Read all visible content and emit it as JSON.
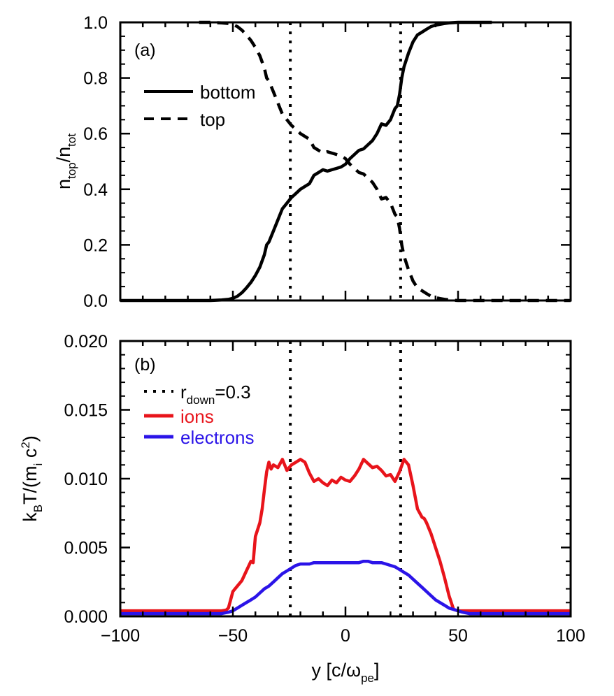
{
  "chart_data": [
    {
      "id": "panel-a",
      "type": "line",
      "panel_label": "(a)",
      "ylabel_main": "n",
      "ylabel_sub1": "top",
      "ylabel_mid": "/n",
      "ylabel_sub2": "tot",
      "xlim": [
        -100,
        100
      ],
      "ylim": [
        0.0,
        1.0
      ],
      "yticks": [
        0.0,
        0.2,
        0.4,
        0.6,
        0.8,
        1.0
      ],
      "ytick_labels": [
        "0.0",
        "0.2",
        "0.4",
        "0.6",
        "0.8",
        "1.0"
      ],
      "xticks": [
        -100,
        -50,
        0,
        50,
        100
      ],
      "x_tick_labels_shown": false,
      "legend_position": "upper-left",
      "vlines": [
        -24.5,
        24.5
      ],
      "series": [
        {
          "name": "bottom",
          "style": "solid",
          "color": "#000000",
          "x": [
            -100,
            -60,
            -55,
            -52,
            -50,
            -48,
            -46,
            -44,
            -42,
            -40,
            -38,
            -36,
            -35,
            -34,
            -32,
            -30,
            -29,
            -28,
            -27,
            -26,
            -25,
            -24,
            -22,
            -20,
            -18,
            -16,
            -14,
            -12,
            -10,
            -8,
            -6,
            -4,
            -2,
            0,
            2,
            4,
            6,
            8,
            10,
            12,
            14,
            16,
            18,
            20,
            22,
            23,
            24,
            25,
            26,
            28,
            30,
            32,
            34,
            36,
            38,
            40,
            42,
            44,
            46,
            48,
            50,
            52,
            55,
            60,
            65
          ],
          "y": [
            0.0,
            0.0,
            0.002,
            0.004,
            0.008,
            0.015,
            0.028,
            0.045,
            0.065,
            0.09,
            0.12,
            0.165,
            0.2,
            0.21,
            0.25,
            0.29,
            0.31,
            0.33,
            0.34,
            0.35,
            0.36,
            0.37,
            0.385,
            0.4,
            0.41,
            0.42,
            0.45,
            0.46,
            0.47,
            0.465,
            0.47,
            0.475,
            0.48,
            0.49,
            0.51,
            0.525,
            0.54,
            0.545,
            0.56,
            0.575,
            0.6,
            0.635,
            0.63,
            0.65,
            0.69,
            0.7,
            0.74,
            0.8,
            0.84,
            0.89,
            0.93,
            0.955,
            0.965,
            0.975,
            0.985,
            0.99,
            0.993,
            0.996,
            0.998,
            0.999,
            1.0,
            1.0,
            1.0,
            1.0,
            1.0
          ]
        },
        {
          "name": "top",
          "style": "dashed",
          "color": "#000000",
          "x": [
            -65,
            -60,
            -55,
            -52,
            -50,
            -48,
            -46,
            -44,
            -42,
            -40,
            -38,
            -36,
            -35,
            -34,
            -32,
            -30,
            -29,
            -28,
            -27,
            -26,
            -25,
            -24,
            -22,
            -20,
            -18,
            -16,
            -14,
            -12,
            -10,
            -8,
            -6,
            -4,
            -2,
            0,
            2,
            4,
            6,
            8,
            10,
            12,
            14,
            16,
            18,
            20,
            22,
            23,
            24,
            25,
            26,
            28,
            30,
            32,
            34,
            36,
            38,
            40,
            42,
            44,
            46,
            48,
            50,
            52,
            55,
            60,
            100
          ],
          "y": [
            1.0,
            1.0,
            0.998,
            0.996,
            0.992,
            0.985,
            0.972,
            0.955,
            0.935,
            0.91,
            0.88,
            0.835,
            0.8,
            0.79,
            0.75,
            0.71,
            0.69,
            0.67,
            0.66,
            0.65,
            0.64,
            0.63,
            0.615,
            0.6,
            0.59,
            0.58,
            0.55,
            0.54,
            0.53,
            0.535,
            0.53,
            0.525,
            0.52,
            0.51,
            0.49,
            0.475,
            0.46,
            0.455,
            0.44,
            0.425,
            0.4,
            0.365,
            0.37,
            0.35,
            0.31,
            0.3,
            0.26,
            0.2,
            0.16,
            0.11,
            0.07,
            0.045,
            0.035,
            0.025,
            0.015,
            0.01,
            0.007,
            0.004,
            0.002,
            0.001,
            0.0,
            0.0,
            0.0,
            0.0,
            0.0
          ]
        }
      ]
    },
    {
      "id": "panel-b",
      "type": "line",
      "panel_label": "(b)",
      "ylabel_parts": [
        "k",
        "B",
        "T/(m",
        "i",
        " c",
        "2",
        ")"
      ],
      "xlabel_parts": [
        "y [c/ω",
        "pe",
        "]"
      ],
      "xlim": [
        -100,
        100
      ],
      "ylim": [
        0.0,
        0.02
      ],
      "yticks": [
        0.0,
        0.005,
        0.01,
        0.015,
        0.02
      ],
      "ytick_labels": [
        "0.000",
        "0.005",
        "0.010",
        "0.015",
        "0.020"
      ],
      "xticks": [
        -100,
        -50,
        0,
        50,
        100
      ],
      "xtick_labels": [
        "−100",
        "−50",
        "0",
        "50",
        "100"
      ],
      "legend_position": "upper-left",
      "vlines": [
        -24.5,
        24.5
      ],
      "legend": [
        {
          "style": "dotted",
          "color": "#000000",
          "label_main": "r",
          "label_sub": "down",
          "label_rest": "=0.3"
        },
        {
          "style": "solid",
          "color": "#e8141b",
          "label": "ions"
        },
        {
          "style": "solid",
          "color": "#2b14e8",
          "label": "electrons"
        }
      ],
      "series": [
        {
          "name": "ions",
          "color": "#e8141b",
          "x": [
            -100,
            -60,
            -55,
            -53,
            -52,
            -51,
            -50,
            -49,
            -48,
            -46,
            -44,
            -42,
            -41,
            -40,
            -38,
            -37,
            -36,
            -35,
            -34,
            -33,
            -32,
            -30,
            -28,
            -26,
            -24,
            -22,
            -20,
            -18,
            -16,
            -14,
            -12,
            -10,
            -8,
            -6,
            -4,
            -2,
            0,
            2,
            4,
            6,
            8,
            10,
            12,
            14,
            16,
            18,
            20,
            22,
            24,
            26,
            28,
            30,
            32,
            34,
            35,
            36,
            38,
            40,
            42,
            44,
            46,
            48,
            50,
            52,
            55,
            60,
            100
          ],
          "y": [
            0.0004,
            0.0004,
            0.0004,
            0.00045,
            0.0006,
            0.0012,
            0.0018,
            0.002,
            0.0022,
            0.0026,
            0.0033,
            0.004,
            0.0039,
            0.0058,
            0.0068,
            0.0078,
            0.0092,
            0.0105,
            0.0112,
            0.0107,
            0.011,
            0.0108,
            0.0114,
            0.0106,
            0.011,
            0.0112,
            0.0114,
            0.0112,
            0.0104,
            0.0098,
            0.01,
            0.0097,
            0.0095,
            0.0099,
            0.0097,
            0.0101,
            0.0099,
            0.0098,
            0.0102,
            0.0107,
            0.0114,
            0.0111,
            0.0108,
            0.0109,
            0.0106,
            0.0102,
            0.0103,
            0.0098,
            0.0105,
            0.0114,
            0.011,
            0.0095,
            0.0078,
            0.0072,
            0.0071,
            0.0068,
            0.006,
            0.005,
            0.004,
            0.0028,
            0.0015,
            0.0005,
            0.0004,
            0.0004,
            0.0004,
            0.0004,
            0.0004
          ]
        },
        {
          "name": "electrons",
          "color": "#2b14e8",
          "x": [
            -100,
            -60,
            -55,
            -52,
            -50,
            -48,
            -46,
            -44,
            -42,
            -40,
            -38,
            -36,
            -34,
            -32,
            -30,
            -28,
            -26,
            -24,
            -22,
            -20,
            -18,
            -16,
            -14,
            -12,
            -10,
            -8,
            -6,
            -4,
            -2,
            0,
            2,
            4,
            6,
            8,
            10,
            12,
            14,
            16,
            18,
            20,
            22,
            24,
            26,
            28,
            30,
            32,
            34,
            36,
            38,
            40,
            42,
            44,
            46,
            48,
            50,
            52,
            55,
            60,
            100
          ],
          "y": [
            0.0002,
            0.0002,
            0.0002,
            0.0003,
            0.0004,
            0.0006,
            0.0008,
            0.001,
            0.0012,
            0.0014,
            0.0017,
            0.002,
            0.0022,
            0.0025,
            0.0028,
            0.0031,
            0.0033,
            0.0035,
            0.0037,
            0.0038,
            0.0038,
            0.0038,
            0.0039,
            0.0039,
            0.0039,
            0.0039,
            0.0039,
            0.0039,
            0.0039,
            0.0039,
            0.0039,
            0.0039,
            0.0039,
            0.004,
            0.004,
            0.0039,
            0.0039,
            0.0039,
            0.0038,
            0.0037,
            0.0036,
            0.0034,
            0.0032,
            0.003,
            0.0027,
            0.0024,
            0.0021,
            0.0018,
            0.0015,
            0.0012,
            0.001,
            0.0008,
            0.0006,
            0.0005,
            0.0004,
            0.0003,
            0.0002,
            0.0002,
            0.0002
          ]
        }
      ]
    }
  ],
  "legend_a": [
    {
      "style": "solid",
      "label": "bottom"
    },
    {
      "style": "dashed",
      "label": "top"
    }
  ]
}
